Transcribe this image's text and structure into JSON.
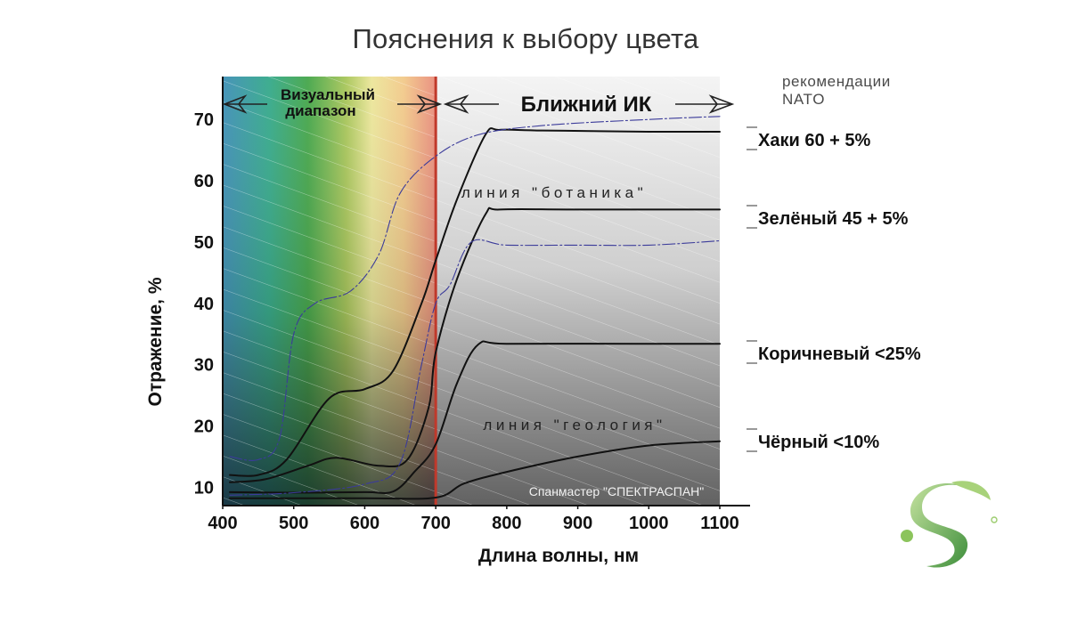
{
  "title": "Пояснения к выбору цвета",
  "nato_note": [
    "рекомендации",
    "NATO"
  ],
  "ranges": {
    "visible": [
      "Визуальный",
      "диапазон"
    ],
    "nir": "Ближний ИК"
  },
  "watermark": "Спанмастер \"СПЕКТРАСПАН\"",
  "colors": {
    "curve": "#111111",
    "reference": "#3b3b9a",
    "visible_band_edge": "#c0392b"
  },
  "chart_data": {
    "type": "line",
    "xlabel": "Длина волны, нм",
    "ylabel": "Отражение, %",
    "xlim": [
      400,
      1100
    ],
    "ylim": [
      7,
      77
    ],
    "x_ticks": [
      400,
      500,
      600,
      700,
      800,
      900,
      1000,
      1100
    ],
    "y_ticks": [
      10,
      20,
      30,
      40,
      50,
      60,
      70
    ],
    "visible_range_nm": [
      400,
      700
    ],
    "series": [
      {
        "name": "Хаки 60 + 5%",
        "style": "solid",
        "points": [
          [
            410,
            12
          ],
          [
            450,
            12
          ],
          [
            490,
            14.5
          ],
          [
            550,
            24.5
          ],
          [
            600,
            26
          ],
          [
            640,
            29
          ],
          [
            680,
            40
          ],
          [
            700,
            47
          ],
          [
            730,
            57
          ],
          [
            770,
            67.5
          ],
          [
            790,
            68.3
          ],
          [
            850,
            68.2
          ],
          [
            1000,
            68
          ],
          [
            1100,
            68
          ]
        ]
      },
      {
        "name": "Зелёный 45 + 5%",
        "style": "solid",
        "points": [
          [
            410,
            10.8
          ],
          [
            460,
            11.3
          ],
          [
            520,
            13.5
          ],
          [
            560,
            14.8
          ],
          [
            620,
            13.5
          ],
          [
            660,
            14.5
          ],
          [
            690,
            23
          ],
          [
            700,
            32
          ],
          [
            730,
            44
          ],
          [
            770,
            54.5
          ],
          [
            790,
            55.3
          ],
          [
            900,
            55.3
          ],
          [
            1100,
            55.3
          ]
        ]
      },
      {
        "name": "Коричневый <25%",
        "style": "solid",
        "points": [
          [
            410,
            9.2
          ],
          [
            500,
            9.1
          ],
          [
            600,
            9.2
          ],
          [
            640,
            9.3
          ],
          [
            670,
            12.5
          ],
          [
            700,
            17
          ],
          [
            730,
            27
          ],
          [
            760,
            33.3
          ],
          [
            800,
            33.4
          ],
          [
            1000,
            33.4
          ],
          [
            1100,
            33.4
          ]
        ]
      },
      {
        "name": "Чёрный <10%",
        "style": "solid",
        "points": [
          [
            410,
            8.2
          ],
          [
            600,
            8.2
          ],
          [
            700,
            8.3
          ],
          [
            740,
            10.6
          ],
          [
            800,
            12.5
          ],
          [
            900,
            15
          ],
          [
            1000,
            16.8
          ],
          [
            1100,
            17.5
          ]
        ]
      },
      {
        "name": "линия \"ботаника\"",
        "style": "reference",
        "points": [
          [
            410,
            15
          ],
          [
            450,
            14.5
          ],
          [
            480,
            18
          ],
          [
            500,
            35
          ],
          [
            530,
            40
          ],
          [
            580,
            42
          ],
          [
            620,
            48
          ],
          [
            650,
            58
          ],
          [
            700,
            64
          ],
          [
            760,
            67.5
          ],
          [
            850,
            69
          ],
          [
            1000,
            70
          ],
          [
            1100,
            70.5
          ]
        ]
      },
      {
        "name": "линия \"геология\"",
        "style": "reference",
        "points": [
          [
            410,
            8.7
          ],
          [
            500,
            9.1
          ],
          [
            600,
            10.5
          ],
          [
            650,
            14
          ],
          [
            680,
            30
          ],
          [
            700,
            40
          ],
          [
            720,
            43
          ],
          [
            750,
            50
          ],
          [
            800,
            49.5
          ],
          [
            900,
            49.5
          ],
          [
            1000,
            49.5
          ],
          [
            1100,
            50.2
          ]
        ]
      }
    ],
    "legend_entries": [
      "Хаки 60 + 5%",
      "Зелёный 45 + 5%",
      "Коричневый <25%",
      "Чёрный <10%"
    ],
    "annotations": [
      "линия \"ботаника\"",
      "линия \"геология\""
    ]
  }
}
